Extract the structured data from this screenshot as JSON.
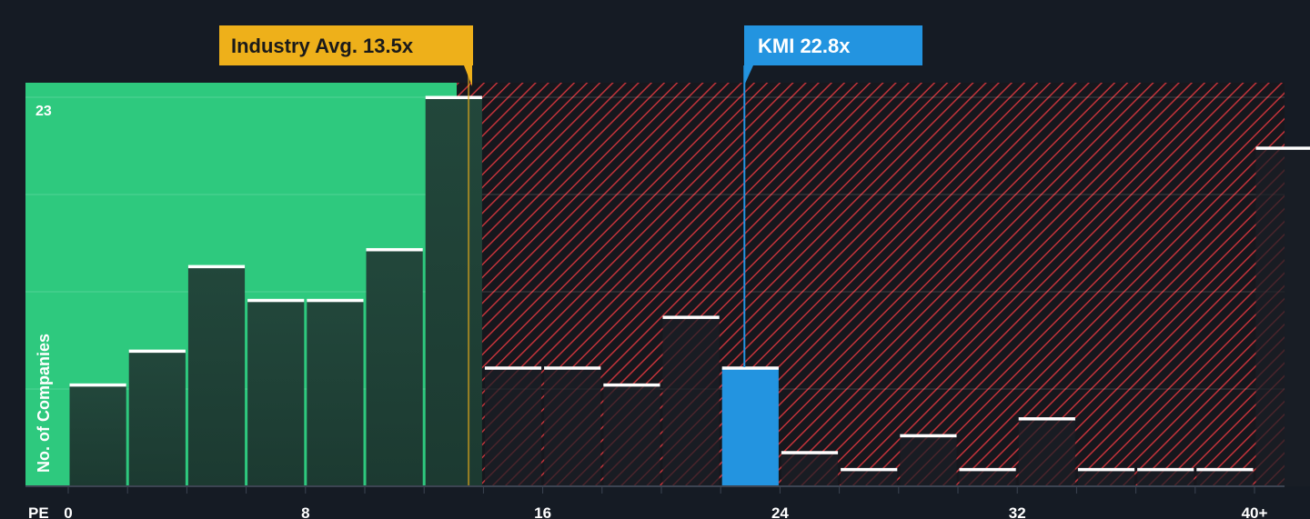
{
  "chart_data": {
    "type": "bar",
    "xlabel": "PE",
    "ylabel": "No. of Companies",
    "x_ticks": [
      {
        "value": 0,
        "label": "0"
      },
      {
        "value": 8,
        "label": "8"
      },
      {
        "value": 16,
        "label": "16"
      },
      {
        "value": 24,
        "label": "24"
      },
      {
        "value": 32,
        "label": "32"
      },
      {
        "value": 40,
        "label": "40+"
      }
    ],
    "y_max_label": "23",
    "ylim": [
      0,
      23
    ],
    "bin_width": 2,
    "bars": [
      {
        "x0": 0,
        "x1": 2,
        "value": 6
      },
      {
        "x0": 2,
        "x1": 4,
        "value": 8
      },
      {
        "x0": 4,
        "x1": 6,
        "value": 13
      },
      {
        "x0": 6,
        "x1": 8,
        "value": 11
      },
      {
        "x0": 8,
        "x1": 10,
        "value": 11
      },
      {
        "x0": 10,
        "x1": 12,
        "value": 14
      },
      {
        "x0": 12,
        "x1": 14,
        "value": 23
      },
      {
        "x0": 14,
        "x1": 16,
        "value": 7
      },
      {
        "x0": 16,
        "x1": 18,
        "value": 7
      },
      {
        "x0": 18,
        "x1": 20,
        "value": 6
      },
      {
        "x0": 20,
        "x1": 22,
        "value": 10
      },
      {
        "x0": 22,
        "x1": 24,
        "value": 7,
        "highlight": true
      },
      {
        "x0": 24,
        "x1": 26,
        "value": 2
      },
      {
        "x0": 26,
        "x1": 28,
        "value": 1
      },
      {
        "x0": 28,
        "x1": 30,
        "value": 3
      },
      {
        "x0": 30,
        "x1": 32,
        "value": 1
      },
      {
        "x0": 32,
        "x1": 34,
        "value": 4
      },
      {
        "x0": 34,
        "x1": 36,
        "value": 1
      },
      {
        "x0": 36,
        "x1": 38,
        "value": 1
      },
      {
        "x0": 38,
        "x1": 40,
        "value": 1
      },
      {
        "x0": 40,
        "x1": 42,
        "value": 20
      }
    ],
    "industry_avg": {
      "value": 13.5,
      "label": "Industry Avg. 13.5x"
    },
    "company": {
      "value": 22.8,
      "label": "KMI 22.8x"
    },
    "grid": true,
    "colors": {
      "background": "#151b24",
      "fair_zone": "#2ec97e",
      "expensive_hatch": "#c2333a",
      "bar": "#1f4a3c",
      "bar_dark": "#1f2a2a",
      "highlight_bar": "#2394e0",
      "bar_top": "#ffffff",
      "industry_callout": "#eeb01a",
      "company_callout": "#2394e0"
    }
  }
}
